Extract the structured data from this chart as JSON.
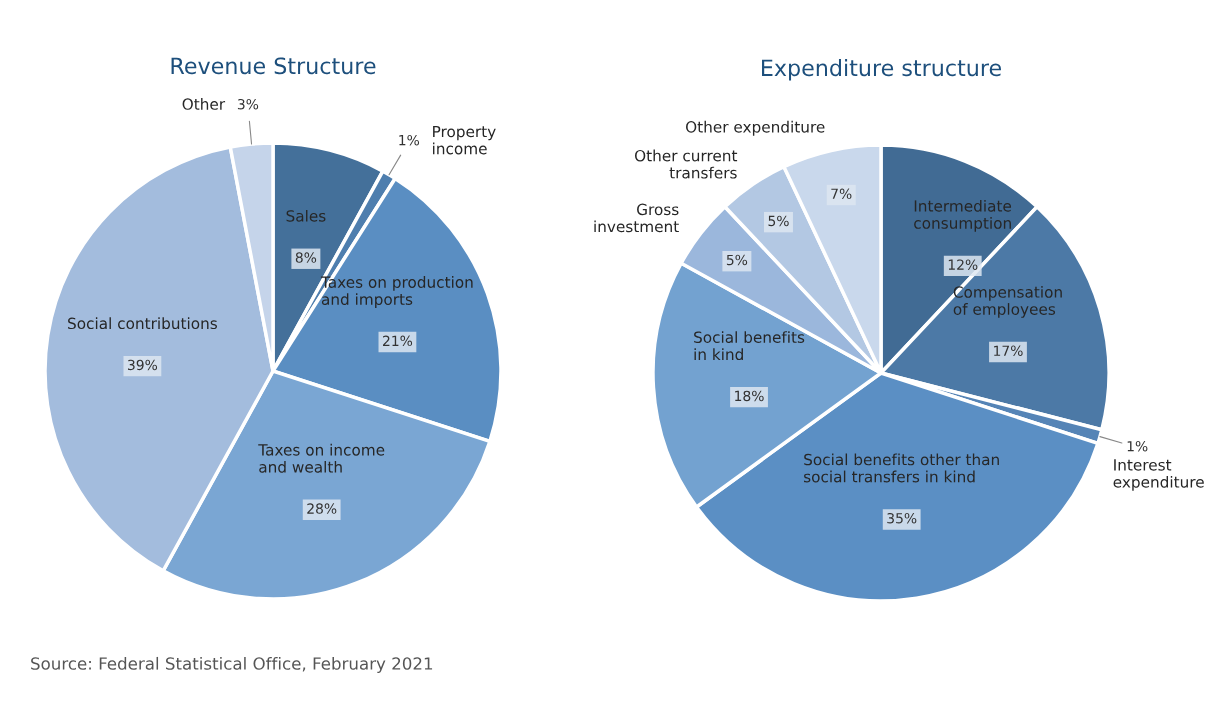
{
  "chart_data": [
    {
      "type": "pie",
      "title": "Revenue Structure",
      "categories": [
        "Sales",
        "Property\nincome",
        "Taxes on production\nand imports",
        "Taxes on income\nand wealth",
        "Social contributions",
        "Other"
      ],
      "values": [
        8,
        1,
        21,
        28,
        39,
        3
      ],
      "value_labels": [
        "8%",
        "1%",
        "21%",
        "28%",
        "39%",
        "3%"
      ],
      "colors": [
        "#44709a",
        "#4e7eae",
        "#5a8ec2",
        "#7aa6d3",
        "#a3bcdd",
        "#c5d4ea"
      ],
      "legend": false
    },
    {
      "type": "pie",
      "title": "Expenditure structure",
      "categories": [
        "Intermediate\nconsumption",
        "Compensation\nof employees",
        "Interest\nexpenditure",
        "Social benefits other than\nsocial transfers in kind",
        "Social benefits\nin kind",
        "Gross\ninvestment",
        "Other current\ntransfers",
        "Other expenditure"
      ],
      "values": [
        12,
        17,
        1,
        35,
        18,
        5,
        5,
        7
      ],
      "value_labels": [
        "12%",
        "17%",
        "1%",
        "35%",
        "18%",
        "5%",
        "5%",
        "7%"
      ],
      "colors": [
        "#416b94",
        "#4c79a6",
        "#5584b6",
        "#5b8fc4",
        "#73a2d0",
        "#9bb7dc",
        "#b3c8e3",
        "#c9d8ec"
      ],
      "legend": false,
      "annotations": [
        "Source: Federal Statistical Office, February 2021"
      ]
    }
  ]
}
